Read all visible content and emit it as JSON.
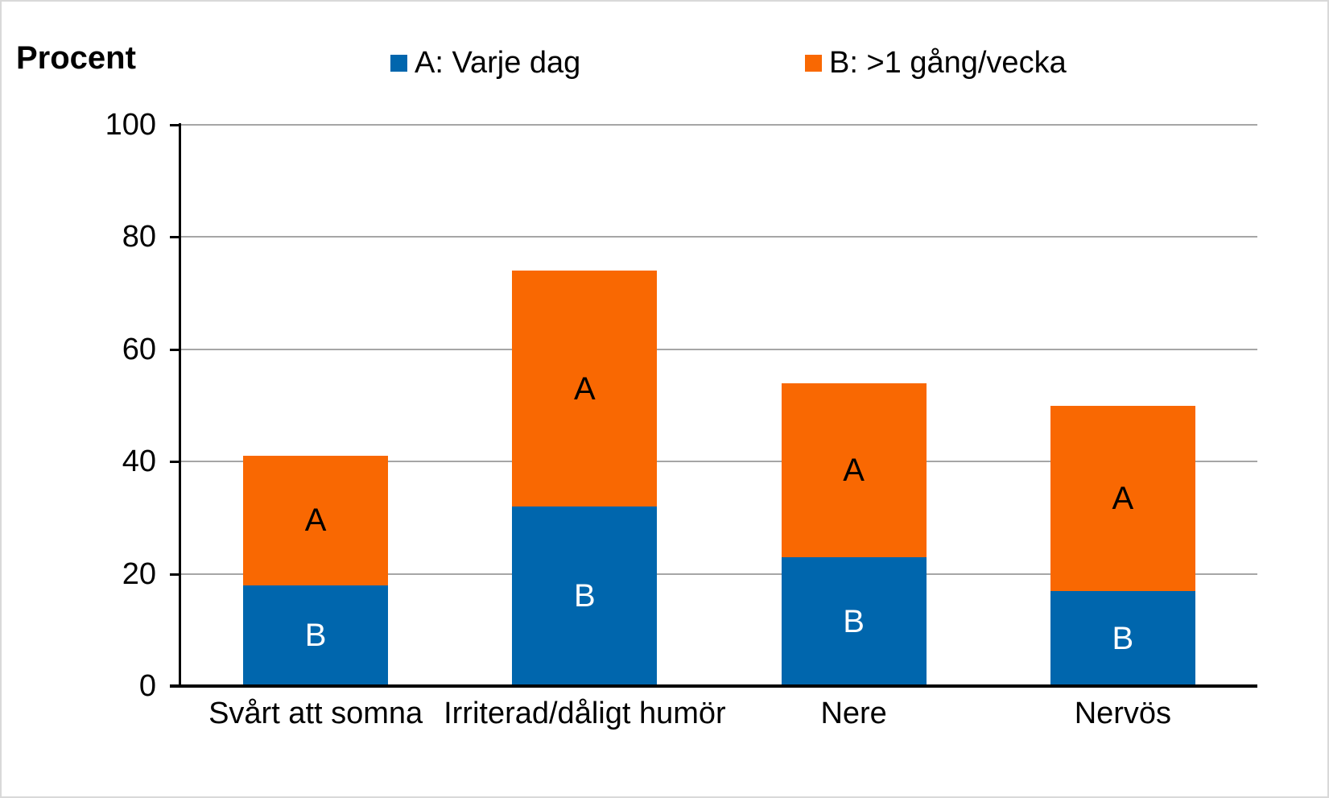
{
  "page": {
    "axis_title": "Procent"
  },
  "chart_data": {
    "type": "bar",
    "stacked": true,
    "title": "Procent",
    "categories": [
      "Svårt att somna",
      "Irriterad/dåligt humör",
      "Nere",
      "Nervös"
    ],
    "series": [
      {
        "legend_label": "A: Varje dag",
        "color": "#0066ad",
        "segment_label": "B",
        "segment_label_color": "#ffffff",
        "values": [
          18,
          32,
          23,
          17
        ]
      },
      {
        "legend_label": "B: >1 gång/vecka",
        "color": "#f96802",
        "segment_label": "A",
        "segment_label_color": "#000000",
        "values": [
          23,
          42,
          31,
          33
        ]
      }
    ],
    "totals": [
      41,
      74,
      54,
      50
    ],
    "ylabel": "Procent",
    "ylim": [
      0,
      100
    ],
    "yticks": [
      0,
      20,
      40,
      60,
      80,
      100
    ],
    "grid": true,
    "legend_position": "top",
    "gridline_color": "#a6a6a6",
    "axis_color": "#000000",
    "background_color": "#ffffff"
  }
}
